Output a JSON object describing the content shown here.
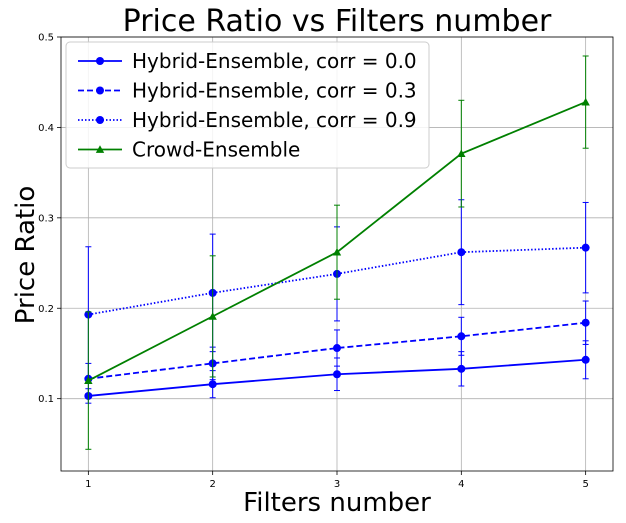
{
  "chart_data": {
    "type": "line",
    "title": "Price Ratio vs Filters number",
    "xlabel": "Filters number",
    "ylabel": "Price Ratio",
    "xlim": [
      0.78,
      5.22
    ],
    "ylim": [
      0.02,
      0.5
    ],
    "x": [
      1,
      2,
      3,
      4,
      5
    ],
    "x_ticks": [
      "1",
      "2",
      "3",
      "4",
      "5"
    ],
    "y_ticks": [
      0.1,
      0.2,
      0.3,
      0.4,
      0.5
    ],
    "y_tick_labels": [
      "0.1",
      "0.2",
      "0.3",
      "0.4",
      "0.5"
    ],
    "grid": true,
    "legend_position": "top-left",
    "series": [
      {
        "name": "Hybrid-Ensemble, corr = 0.0",
        "color": "#0000ff",
        "line_style": "solid",
        "marker": "circle",
        "values": [
          0.103,
          0.116,
          0.127,
          0.133,
          0.143
        ],
        "error": [
          0.008,
          0.015,
          0.018,
          0.019,
          0.021
        ]
      },
      {
        "name": "Hybrid-Ensemble, corr = 0.3",
        "color": "#0000ff",
        "line_style": "dashed",
        "marker": "circle",
        "values": [
          0.122,
          0.139,
          0.156,
          0.169,
          0.184
        ],
        "error": [
          0.017,
          0.018,
          0.02,
          0.021,
          0.024
        ]
      },
      {
        "name": "Hybrid-Ensemble, corr = 0.9",
        "color": "#0000ff",
        "line_style": "dotted",
        "marker": "circle",
        "values": [
          0.193,
          0.217,
          0.238,
          0.262,
          0.267
        ],
        "error": [
          0.075,
          0.065,
          0.052,
          0.058,
          0.05
        ]
      },
      {
        "name": "Crowd-Ensemble",
        "color": "#008000",
        "line_style": "solid",
        "marker": "triangle",
        "values": [
          0.12,
          0.191,
          0.262,
          0.371,
          0.428
        ],
        "error": [
          0.076,
          0.067,
          0.052,
          0.059,
          0.051
        ]
      }
    ]
  }
}
